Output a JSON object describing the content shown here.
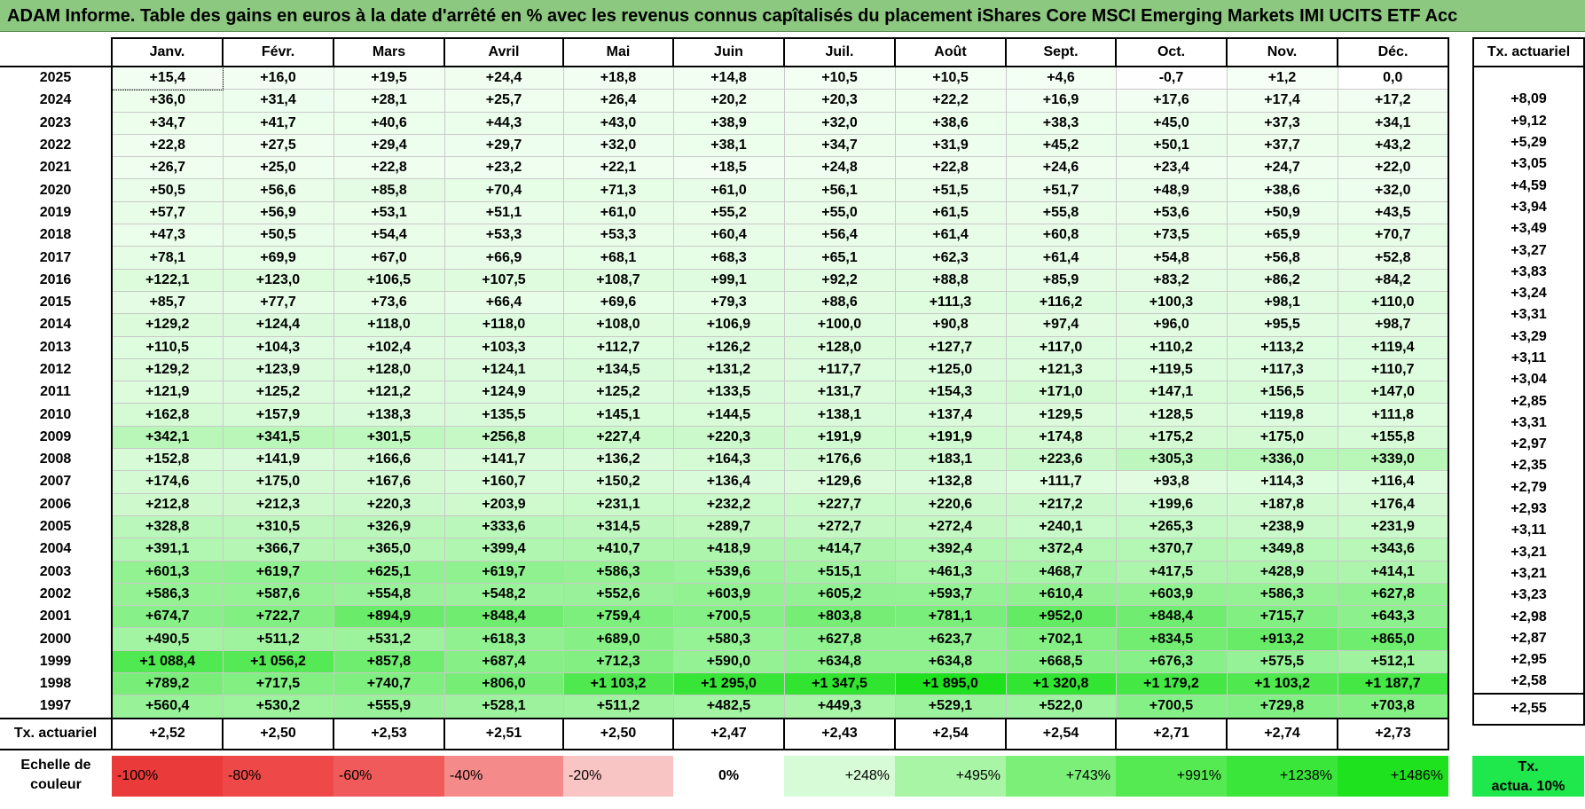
{
  "title": "ADAM Informe. Table des gains en euros à la date d'arrêté en % avec les revenus connus capîtalisés du placement iShares Core MSCI Emerging Markets IMI UCITS ETF Acc",
  "months": [
    "Janv.",
    "Févr.",
    "Mars",
    "Avril",
    "Mai",
    "Juin",
    "Juil.",
    "Août",
    "Sept.",
    "Oct.",
    "Nov.",
    "Déc."
  ],
  "tx_header": "Tx. actuariel",
  "rows": [
    {
      "year": "2025",
      "values": [
        "+15,4",
        "+16,0",
        "+19,5",
        "+24,4",
        "+18,8",
        "+14,8",
        "+10,5",
        "+10,5",
        "+4,6",
        "-0,7",
        "+1,2",
        "0,0"
      ],
      "tx": ""
    },
    {
      "year": "2024",
      "values": [
        "+36,0",
        "+31,4",
        "+28,1",
        "+25,7",
        "+26,4",
        "+20,2",
        "+20,3",
        "+22,2",
        "+16,9",
        "+17,6",
        "+17,4",
        "+17,2"
      ],
      "tx": "+8,09"
    },
    {
      "year": "2023",
      "values": [
        "+34,7",
        "+41,7",
        "+40,6",
        "+44,3",
        "+43,0",
        "+38,9",
        "+32,0",
        "+38,6",
        "+38,3",
        "+45,0",
        "+37,3",
        "+34,1"
      ],
      "tx": "+9,12"
    },
    {
      "year": "2022",
      "values": [
        "+22,8",
        "+27,5",
        "+29,4",
        "+29,7",
        "+32,0",
        "+38,1",
        "+34,7",
        "+31,9",
        "+45,2",
        "+50,1",
        "+37,7",
        "+43,2"
      ],
      "tx": "+5,29"
    },
    {
      "year": "2021",
      "values": [
        "+26,7",
        "+25,0",
        "+22,8",
        "+23,2",
        "+22,1",
        "+18,5",
        "+24,8",
        "+22,8",
        "+24,6",
        "+23,4",
        "+24,7",
        "+22,0"
      ],
      "tx": "+3,05"
    },
    {
      "year": "2020",
      "values": [
        "+50,5",
        "+56,6",
        "+85,8",
        "+70,4",
        "+71,3",
        "+61,0",
        "+56,1",
        "+51,5",
        "+51,7",
        "+48,9",
        "+38,6",
        "+32,0"
      ],
      "tx": "+4,59"
    },
    {
      "year": "2019",
      "values": [
        "+57,7",
        "+56,9",
        "+53,1",
        "+51,1",
        "+61,0",
        "+55,2",
        "+55,0",
        "+61,5",
        "+55,8",
        "+53,6",
        "+50,9",
        "+43,5"
      ],
      "tx": "+3,94"
    },
    {
      "year": "2018",
      "values": [
        "+47,3",
        "+50,5",
        "+54,4",
        "+53,3",
        "+53,3",
        "+60,4",
        "+56,4",
        "+61,4",
        "+60,8",
        "+73,5",
        "+65,9",
        "+70,7"
      ],
      "tx": "+3,49"
    },
    {
      "year": "2017",
      "values": [
        "+78,1",
        "+69,9",
        "+67,0",
        "+66,9",
        "+68,1",
        "+68,3",
        "+65,1",
        "+62,3",
        "+61,4",
        "+54,8",
        "+56,8",
        "+52,8"
      ],
      "tx": "+3,27"
    },
    {
      "year": "2016",
      "values": [
        "+122,1",
        "+123,0",
        "+106,5",
        "+107,5",
        "+108,7",
        "+99,1",
        "+92,2",
        "+88,8",
        "+85,9",
        "+83,2",
        "+86,2",
        "+84,2"
      ],
      "tx": "+3,83"
    },
    {
      "year": "2015",
      "values": [
        "+85,7",
        "+77,7",
        "+73,6",
        "+66,4",
        "+69,6",
        "+79,3",
        "+88,6",
        "+111,3",
        "+116,2",
        "+100,3",
        "+98,1",
        "+110,0"
      ],
      "tx": "+3,24"
    },
    {
      "year": "2014",
      "values": [
        "+129,2",
        "+124,4",
        "+118,0",
        "+118,0",
        "+108,0",
        "+106,9",
        "+100,0",
        "+90,8",
        "+97,4",
        "+96,0",
        "+95,5",
        "+98,7"
      ],
      "tx": "+3,31"
    },
    {
      "year": "2013",
      "values": [
        "+110,5",
        "+104,3",
        "+102,4",
        "+103,3",
        "+112,7",
        "+126,2",
        "+128,0",
        "+127,7",
        "+117,0",
        "+110,2",
        "+113,2",
        "+119,4"
      ],
      "tx": "+3,29"
    },
    {
      "year": "2012",
      "values": [
        "+129,2",
        "+123,9",
        "+128,0",
        "+124,1",
        "+134,5",
        "+131,2",
        "+117,7",
        "+125,0",
        "+121,3",
        "+119,5",
        "+117,3",
        "+110,7"
      ],
      "tx": "+3,11"
    },
    {
      "year": "2011",
      "values": [
        "+121,9",
        "+125,2",
        "+121,2",
        "+124,9",
        "+125,2",
        "+133,5",
        "+131,7",
        "+154,3",
        "+171,0",
        "+147,1",
        "+156,5",
        "+147,0"
      ],
      "tx": "+3,04"
    },
    {
      "year": "2010",
      "values": [
        "+162,8",
        "+157,9",
        "+138,3",
        "+135,5",
        "+145,1",
        "+144,5",
        "+138,1",
        "+137,4",
        "+129,5",
        "+128,5",
        "+119,8",
        "+111,8"
      ],
      "tx": "+2,85"
    },
    {
      "year": "2009",
      "values": [
        "+342,1",
        "+341,5",
        "+301,5",
        "+256,8",
        "+227,4",
        "+220,3",
        "+191,9",
        "+191,9",
        "+174,8",
        "+175,2",
        "+175,0",
        "+155,8"
      ],
      "tx": "+3,31"
    },
    {
      "year": "2008",
      "values": [
        "+152,8",
        "+141,9",
        "+166,6",
        "+141,7",
        "+136,2",
        "+164,3",
        "+176,6",
        "+183,1",
        "+223,6",
        "+305,3",
        "+336,0",
        "+339,0"
      ],
      "tx": "+2,97"
    },
    {
      "year": "2007",
      "values": [
        "+174,6",
        "+175,0",
        "+167,6",
        "+160,7",
        "+150,2",
        "+136,4",
        "+129,6",
        "+132,8",
        "+111,7",
        "+93,8",
        "+114,3",
        "+116,4"
      ],
      "tx": "+2,35"
    },
    {
      "year": "2006",
      "values": [
        "+212,8",
        "+212,3",
        "+220,3",
        "+203,9",
        "+231,1",
        "+232,2",
        "+227,7",
        "+220,6",
        "+217,2",
        "+199,6",
        "+187,8",
        "+176,4"
      ],
      "tx": "+2,79"
    },
    {
      "year": "2005",
      "values": [
        "+328,8",
        "+310,5",
        "+326,9",
        "+333,6",
        "+314,5",
        "+289,7",
        "+272,7",
        "+272,4",
        "+240,1",
        "+265,3",
        "+238,9",
        "+231,9"
      ],
      "tx": "+2,93"
    },
    {
      "year": "2004",
      "values": [
        "+391,1",
        "+366,7",
        "+365,0",
        "+399,4",
        "+410,7",
        "+418,9",
        "+414,7",
        "+392,4",
        "+372,4",
        "+370,7",
        "+349,8",
        "+343,6"
      ],
      "tx": "+3,11"
    },
    {
      "year": "2003",
      "values": [
        "+601,3",
        "+619,7",
        "+625,1",
        "+619,7",
        "+586,3",
        "+539,6",
        "+515,1",
        "+461,3",
        "+468,7",
        "+417,5",
        "+428,9",
        "+414,1"
      ],
      "tx": "+3,21"
    },
    {
      "year": "2002",
      "values": [
        "+586,3",
        "+587,6",
        "+554,8",
        "+548,2",
        "+552,6",
        "+603,9",
        "+605,2",
        "+593,7",
        "+610,4",
        "+603,9",
        "+586,3",
        "+627,8"
      ],
      "tx": "+3,21"
    },
    {
      "year": "2001",
      "values": [
        "+674,7",
        "+722,7",
        "+894,9",
        "+848,4",
        "+759,4",
        "+700,5",
        "+803,8",
        "+781,1",
        "+952,0",
        "+848,4",
        "+715,7",
        "+643,3"
      ],
      "tx": "+3,23"
    },
    {
      "year": "2000",
      "values": [
        "+490,5",
        "+511,2",
        "+531,2",
        "+618,3",
        "+689,0",
        "+580,3",
        "+627,8",
        "+623,7",
        "+702,1",
        "+834,5",
        "+913,2",
        "+865,0"
      ],
      "tx": "+2,98"
    },
    {
      "year": "1999",
      "values": [
        "+1 088,4",
        "+1 056,2",
        "+857,8",
        "+687,4",
        "+712,3",
        "+590,0",
        "+634,8",
        "+634,8",
        "+668,5",
        "+676,3",
        "+575,5",
        "+512,1"
      ],
      "tx": "+2,87"
    },
    {
      "year": "1998",
      "values": [
        "+789,2",
        "+717,5",
        "+740,7",
        "+806,0",
        "+1 103,2",
        "+1 295,0",
        "+1 347,5",
        "+1 895,0",
        "+1 320,8",
        "+1 179,2",
        "+1 103,2",
        "+1 187,7"
      ],
      "tx": "+2,95"
    },
    {
      "year": "1997",
      "values": [
        "+560,4",
        "+530,2",
        "+555,9",
        "+528,1",
        "+511,2",
        "+482,5",
        "+449,3",
        "+529,1",
        "+522,0",
        "+700,5",
        "+729,8",
        "+703,8"
      ],
      "tx": "+2,58"
    }
  ],
  "footer": {
    "label": "Tx. actuariel",
    "values": [
      "+2,52",
      "+2,50",
      "+2,53",
      "+2,51",
      "+2,50",
      "+2,47",
      "+2,43",
      "+2,54",
      "+2,54",
      "+2,71",
      "+2,74",
      "+2,73"
    ],
    "tx": "+2,55"
  },
  "scale": {
    "label_line1": "Echelle de",
    "label_line2": "couleur",
    "items": [
      {
        "label": "-100%",
        "color": "#ea3a3a",
        "kind": "neg"
      },
      {
        "label": "-80%",
        "color": "#ee4848",
        "kind": "neg"
      },
      {
        "label": "-60%",
        "color": "#f15a5a",
        "kind": "neg"
      },
      {
        "label": "-40%",
        "color": "#f58a8a",
        "kind": "neg"
      },
      {
        "label": "-20%",
        "color": "#f9c4c4",
        "kind": "neg"
      },
      {
        "label": "0%",
        "color": "#ffffff",
        "kind": "zero"
      },
      {
        "label": "+248%",
        "color": "#d7fbd6",
        "kind": "pos"
      },
      {
        "label": "+495%",
        "color": "#a8f5a6",
        "kind": "pos"
      },
      {
        "label": "+743%",
        "color": "#7cef78",
        "kind": "pos"
      },
      {
        "label": "+991%",
        "color": "#56ea52",
        "kind": "pos"
      },
      {
        "label": "+1238%",
        "color": "#3ae63a",
        "kind": "pos"
      },
      {
        "label": "+1486%",
        "color": "#1fe21f",
        "kind": "pos"
      }
    ],
    "tx_line1": "Tx.",
    "tx_line2": "actua. 10%",
    "tx_color": "#1ee84c"
  }
}
